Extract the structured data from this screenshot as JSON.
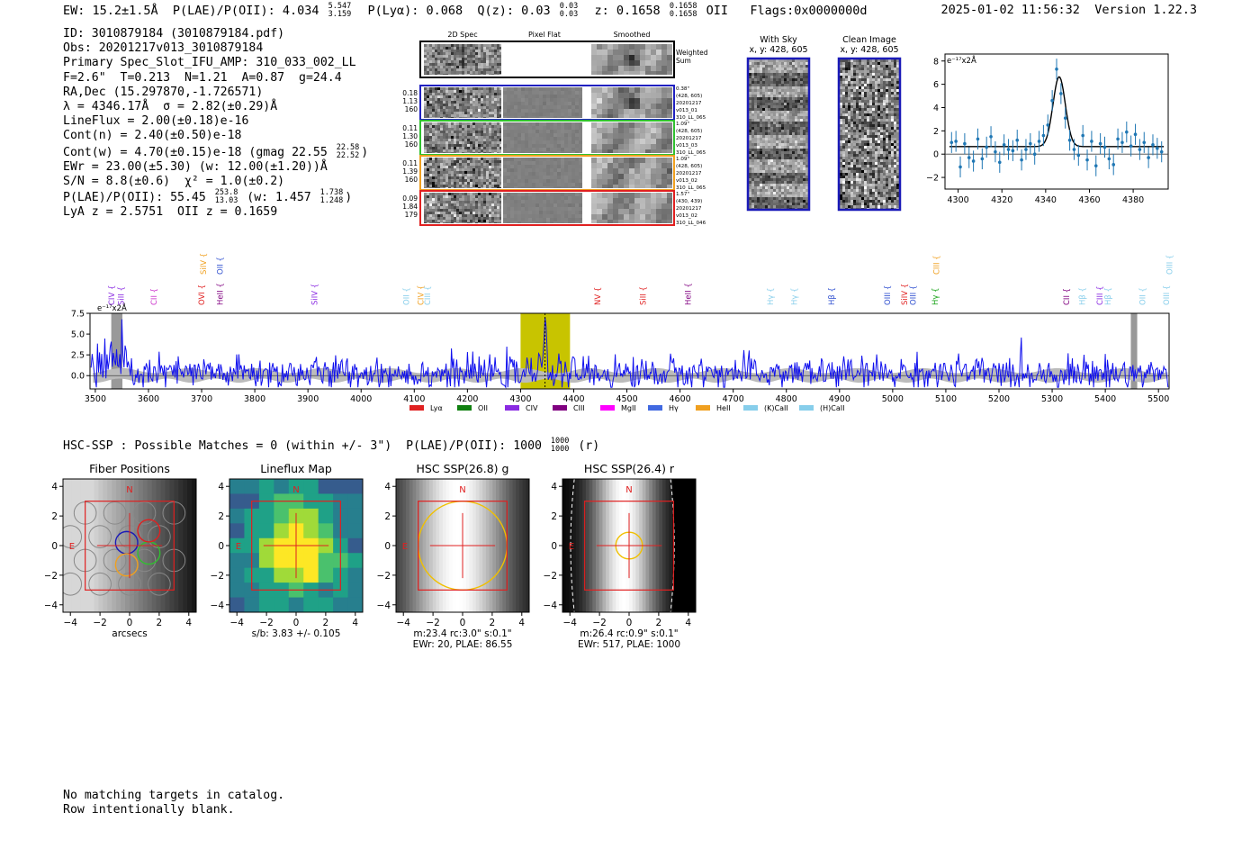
{
  "header": {
    "summary": "EW: 15.2±1.5Å  P(LAE)/P(OII): 4.034 5.547/3.159  P(Lyα): 0.068  Q(z): 0.03 0.03/0.03  z: 0.1658 0.1658/0.1658 OII   Flags:0x0000000d",
    "timestamp": "2025-01-02 11:56:32",
    "version": "Version 1.22.3"
  },
  "info_lines": [
    "ID: 3010879184 (3010879184.pdf)",
    "Obs: 20201217v013_3010879184",
    "Primary Spec_Slot_IFU_AMP: 310_033_002_LL",
    "F=2.6\"  T=0.213  N=1.21  A=0.87  g=24.4",
    "RA,Dec (15.297870,-1.726571)",
    "λ = 4346.17Å  σ = 2.82(±0.29)Å",
    "LineFlux = 2.00(±0.18)e-16",
    "Cont(n) = 2.40(±0.50)e-18",
    "Cont(w) = 4.70(±0.15)e-18 (gmag 22.55 22.58/22.52)",
    "EWr = 23.00(±5.30) (w: 12.00(±1.20))Å",
    "S/N = 8.8(±0.6)  χ² = 1.0(±0.2)",
    "P(LAE)/P(OII): 55.45 253.8/13.03 (w: 1.457 1.738/1.248)",
    "LyA z = 2.5751  OII z = 0.1659"
  ],
  "cutouts": {
    "col_headers": [
      "2D Spec",
      "Pixel Flat",
      "Smoothed"
    ],
    "weighted_label": "Weighted Sum",
    "rows": [
      {
        "left": [
          "0.18",
          "1.13",
          "160"
        ],
        "right": [
          "0.38\"",
          "(428, 605)",
          "20201217",
          "v013_01",
          "310_LL_065"
        ],
        "color": "#2020c0"
      },
      {
        "left": [
          "0.11",
          "1.30",
          "160"
        ],
        "right": [
          "1.09\"",
          "(428, 605)",
          "20201217",
          "v013_03",
          "310_LL_065"
        ],
        "color": "#30c030"
      },
      {
        "left": [
          "0.11",
          "1.39",
          "160"
        ],
        "right": [
          "1.09\"",
          "(428, 605)",
          "20201217",
          "v013_02",
          "310_LL_065"
        ],
        "color": "#f0a020"
      },
      {
        "left": [
          "0.09",
          "1.84",
          "179"
        ],
        "right": [
          "1.57\"",
          "(430, 439)",
          "20201217",
          "v013_02",
          "310_LL_046"
        ],
        "color": "#e02020"
      }
    ],
    "with_sky_title": "With Sky",
    "with_sky_xy": "x, y: 428, 605",
    "clean_title": "Clean Image",
    "clean_xy": "x, y: 428, 605"
  },
  "chart_data": [
    {
      "type": "line",
      "title": "",
      "unit_label": "e⁻¹⁷x2Å",
      "x_ticks": [
        4300,
        4320,
        4340,
        4360,
        4380
      ],
      "y_ticks": [
        -2,
        0,
        2,
        4,
        6,
        8
      ],
      "xlim": [
        4294,
        4396
      ],
      "ylim": [
        -3,
        8.6
      ],
      "series": [
        {
          "x": [
            4297,
            4299,
            4301,
            4303,
            4305,
            4307,
            4309,
            4311,
            4313,
            4315,
            4317,
            4319,
            4321,
            4323,
            4325,
            4327,
            4329,
            4331,
            4333,
            4335,
            4337,
            4339,
            4341,
            4343,
            4345,
            4347,
            4349,
            4351,
            4353,
            4355,
            4357,
            4359,
            4361,
            4363,
            4365,
            4367,
            4369,
            4371,
            4373,
            4375,
            4377,
            4379,
            4381,
            4383,
            4385,
            4387,
            4389,
            4391,
            4393
          ],
          "y": [
            1.0,
            1.1,
            -1.1,
            0.9,
            -0.3,
            -0.6,
            1.3,
            -0.4,
            0.6,
            1.5,
            0.2,
            -0.7,
            0.8,
            0.4,
            0.3,
            1.2,
            -0.5,
            0.4,
            0.9,
            0.0,
            1.1,
            1.6,
            2.5,
            4.6,
            7.3,
            5.2,
            3.1,
            1.2,
            0.4,
            -0.1,
            1.6,
            -0.5,
            1.1,
            -1.0,
            0.9,
            0.6,
            -0.4,
            -0.9,
            1.3,
            1.0,
            1.9,
            0.7,
            1.7,
            0.4,
            1.0,
            -0.3,
            0.8,
            0.5,
            0.2
          ]
        }
      ],
      "fit": {
        "center": 4346.17,
        "sigma": 2.82,
        "amplitude": 6.0
      }
    },
    {
      "type": "line",
      "title": "",
      "unit_label": "e⁻¹⁷x2Å",
      "x_ticks": [
        3500,
        3600,
        3700,
        3800,
        3900,
        4000,
        4100,
        4200,
        4300,
        4400,
        4500,
        4600,
        4700,
        4800,
        4900,
        5000,
        5100,
        5200,
        5300,
        5400,
        5500
      ],
      "y_ticks": [
        0.0,
        2.5,
        5.0,
        7.5
      ],
      "xlim": [
        3490,
        5520
      ],
      "ylim": [
        -1.6,
        7.5
      ],
      "highlight_range": [
        4300,
        4393
      ],
      "line_markers": [
        {
          "label": "CIV",
          "x": 3531,
          "row": 1,
          "color": "#8a2be2"
        },
        {
          "label": "SiII",
          "x": 3548,
          "row": 1,
          "color": "#8a2be2"
        },
        {
          "label": "CII",
          "x": 3610,
          "row": 1,
          "color": "#cc33cc"
        },
        {
          "label": "OVI",
          "x": 3700,
          "row": 1,
          "color": "#e02020"
        },
        {
          "label": "SiIV",
          "x": 3703,
          "row": 0,
          "color": "#f0a020"
        },
        {
          "label": "HeII",
          "x": 3735,
          "row": 1,
          "color": "#800080"
        },
        {
          "label": "OII",
          "x": 3735,
          "row": 0,
          "color": "#3050d0"
        },
        {
          "label": "SiIV",
          "x": 3912,
          "row": 1,
          "color": "#8a2be2"
        },
        {
          "label": "OII",
          "x": 4085,
          "row": 1,
          "color": "#87ceeb"
        },
        {
          "label": "CIV",
          "x": 4112,
          "row": 1,
          "color": "#f0a020"
        },
        {
          "label": "CIII",
          "x": 4125,
          "row": 1,
          "color": "#87ceeb"
        },
        {
          "label": "NV",
          "x": 4445,
          "row": 1,
          "color": "#e02020"
        },
        {
          "label": "SiII",
          "x": 4530,
          "row": 1,
          "color": "#e02020"
        },
        {
          "label": "HeII",
          "x": 4615,
          "row": 1,
          "color": "#800080"
        },
        {
          "label": "Hγ",
          "x": 4770,
          "row": 1,
          "color": "#87ceeb"
        },
        {
          "label": "Hγ",
          "x": 4815,
          "row": 1,
          "color": "#87ceeb"
        },
        {
          "label": "Hβ",
          "x": 4885,
          "row": 1,
          "color": "#3050d0"
        },
        {
          "label": "OIII",
          "x": 4990,
          "row": 1,
          "color": "#3050d0"
        },
        {
          "label": "SiIV",
          "x": 5022,
          "row": 1,
          "color": "#e02020"
        },
        {
          "label": "OIII",
          "x": 5038,
          "row": 1,
          "color": "#3050d0"
        },
        {
          "label": "Hγ",
          "x": 5080,
          "row": 1,
          "color": "#10a010"
        },
        {
          "label": "CIII",
          "x": 5082,
          "row": 0,
          "color": "#f0a020"
        },
        {
          "label": "CII",
          "x": 5327,
          "row": 1,
          "color": "#800080"
        },
        {
          "label": "Hβ",
          "x": 5357,
          "row": 1,
          "color": "#87ceeb"
        },
        {
          "label": "CIII",
          "x": 5390,
          "row": 1,
          "color": "#8a2be2"
        },
        {
          "label": "Hβ",
          "x": 5405,
          "row": 1,
          "color": "#87ceeb"
        },
        {
          "label": "OII",
          "x": 5470,
          "row": 1,
          "color": "#87ceeb"
        },
        {
          "label": "OIII",
          "x": 5515,
          "row": 1,
          "color": "#87ceeb"
        },
        {
          "label": "OIII",
          "x": 5521,
          "row": 0,
          "color": "#87ceeb"
        }
      ],
      "legend": [
        {
          "label": "Lyα",
          "color": "#e02020"
        },
        {
          "label": "OII",
          "color": "#108010"
        },
        {
          "label": "CIV",
          "color": "#8a2be2"
        },
        {
          "label": "CIII",
          "color": "#800080"
        },
        {
          "label": "MgII",
          "color": "#ff00ff"
        },
        {
          "label": "Hγ",
          "color": "#4169e1"
        },
        {
          "label": "HeII",
          "color": "#f0a020"
        },
        {
          "label": "(K)CaII",
          "color": "#87ceeb"
        },
        {
          "label": "(H)CaII",
          "color": "#87ceeb"
        }
      ],
      "peak": {
        "x": 4346,
        "y": 7.5
      }
    }
  ],
  "hsc_line": "HSC-SSP : Possible Matches = 0 (within +/- 3\")  P(LAE)/P(OII): 1000 1000/1000 (r)",
  "thumbnails": [
    {
      "title": "Fiber Positions",
      "caption": [
        "arcsecs"
      ],
      "kind": "fiber"
    },
    {
      "title": "Lineflux Map",
      "caption": [
        "s/b: 3.83 +/- 0.105"
      ],
      "kind": "lineflux"
    },
    {
      "title": "HSC SSP(26.8) g",
      "caption": [
        "m:23.4 rc:3.0\"  s:0.1\"",
        "EWr: 20, PLAE: 86.55"
      ],
      "kind": "hsc_g"
    },
    {
      "title": "HSC SSP(26.4) r",
      "caption": [
        "m:26.4 rc:0.9\"  s:0.1\"",
        "EWr: 517, PLAE: 1000"
      ],
      "kind": "hsc_r"
    }
  ],
  "thumb_axis_ticks": [
    -4,
    -2,
    0,
    2,
    4
  ],
  "compass": {
    "north": "N",
    "east": "E"
  },
  "catalog_note": [
    "No matching targets in catalog.",
    "Row intentionally blank."
  ]
}
